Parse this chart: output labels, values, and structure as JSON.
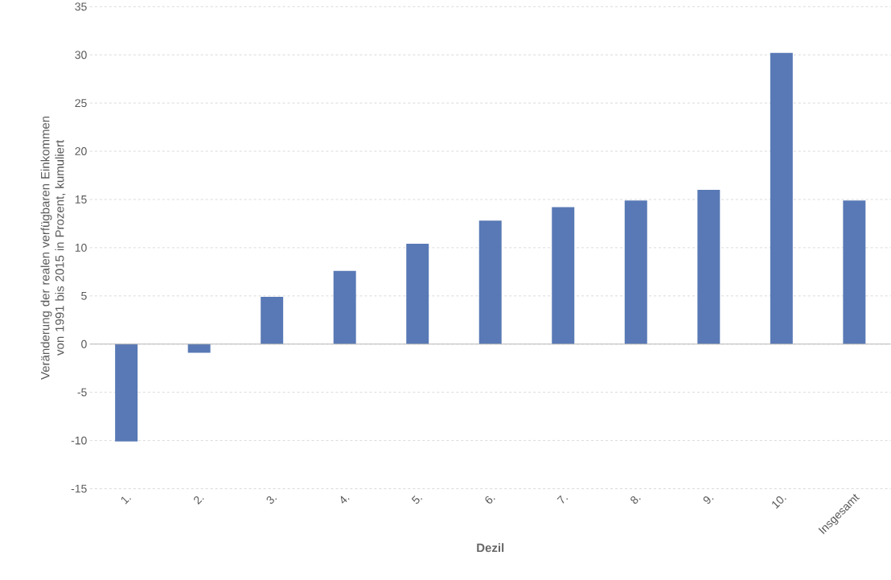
{
  "chart_data": {
    "type": "bar",
    "xlabel": "Dezil",
    "ylabel": "Veränderung der realen verfügbaren Einkommen von 1991 bis 2015 in Prozent, kumuliert",
    "categories": [
      "1.",
      "2.",
      "3.",
      "4.",
      "5.",
      "6.",
      "7.",
      "8.",
      "9.",
      "10.",
      "Insgesamt"
    ],
    "values": [
      -10.1,
      -0.9,
      4.9,
      7.6,
      10.4,
      12.8,
      14.2,
      14.9,
      16.0,
      30.2,
      14.9
    ],
    "color": "#5879b5",
    "ylim": [
      -15,
      35
    ],
    "yticks": [
      -15,
      -10,
      -5,
      0,
      5,
      10,
      15,
      20,
      25,
      30,
      35
    ],
    "grid": "y"
  }
}
